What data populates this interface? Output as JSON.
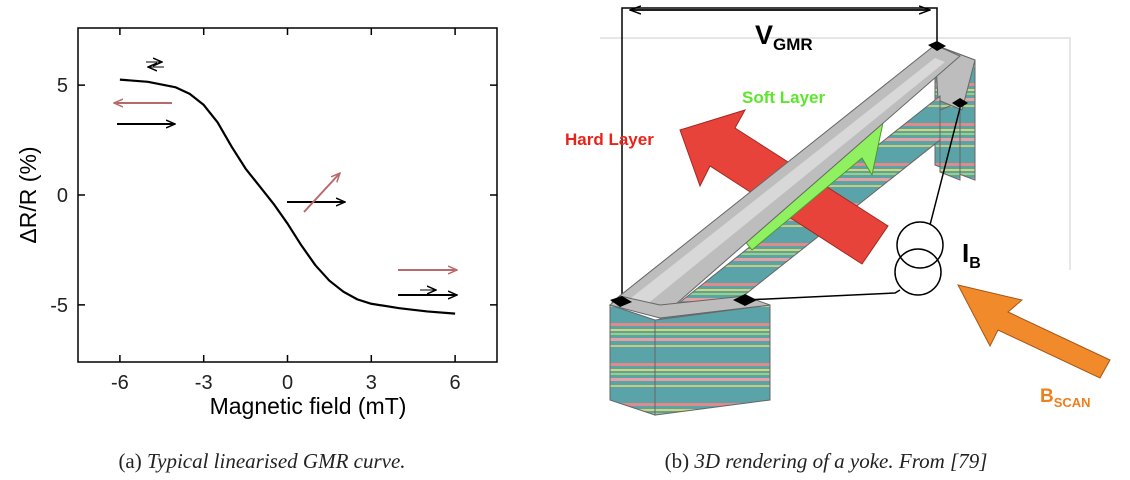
{
  "chart_data": {
    "type": "line",
    "xlabel": "Magnetic field (mT)",
    "ylabel": "ΔR/R (%)",
    "x": [
      -6,
      -5,
      -4,
      -3.5,
      -3,
      -2.5,
      -2,
      -1.5,
      -1,
      -0.5,
      0,
      0.5,
      1,
      1.5,
      2,
      2.5,
      3,
      4,
      5,
      6
    ],
    "series": [
      {
        "color": "#000000",
        "values": [
          5.25,
          5.15,
          4.9,
          4.6,
          4.1,
          3.3,
          2.2,
          1.2,
          0.4,
          -0.4,
          -1.3,
          -2.3,
          -3.2,
          -3.9,
          -4.4,
          -4.75,
          -4.95,
          -5.15,
          -5.3,
          -5.4
        ]
      }
    ],
    "xlim": [
      -7.5,
      7.5
    ],
    "ylim": [
      -7.6,
      7.6
    ],
    "xticks": [
      -6,
      -3,
      0,
      3,
      6
    ],
    "yticks": [
      -5,
      0,
      5
    ],
    "grid": false
  },
  "figure_b": {
    "voltage": {
      "main": "V",
      "sub": "GMR"
    },
    "soft_layer": "Soft Layer",
    "hard_layer": "Hard Layer",
    "current": {
      "main": "I",
      "sub": "B"
    },
    "scan_field": {
      "main": "B",
      "sub": "SCAN"
    }
  },
  "captions": [
    {
      "label": "(a)",
      "text": "Typical linearised GMR curve."
    },
    {
      "label": "(b)",
      "text": "3D rendering of a yoke. From [79]"
    }
  ]
}
